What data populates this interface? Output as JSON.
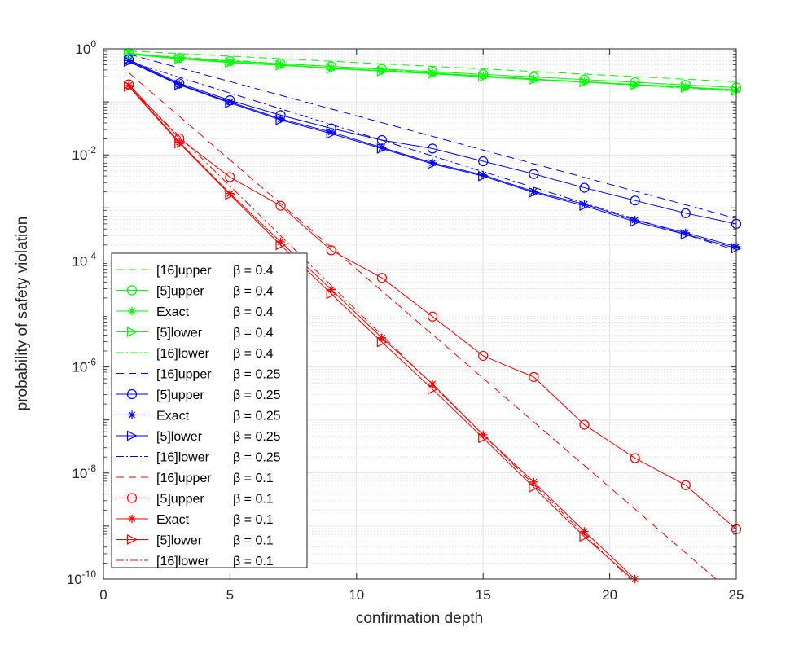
{
  "chart_data": {
    "type": "line",
    "title": "",
    "xlabel": "confirmation depth",
    "ylabel": "probability of safety violation",
    "xlim": [
      0,
      25
    ],
    "ylim_log10": [
      -10,
      0
    ],
    "yscale": "log",
    "x_ticks": [
      0,
      5,
      10,
      15,
      20,
      25
    ],
    "y_ticks": [
      {
        "base": "10",
        "exp": "0"
      },
      {
        "base": "10",
        "exp": "-2"
      },
      {
        "base": "10",
        "exp": "-4"
      },
      {
        "base": "10",
        "exp": "-6"
      },
      {
        "base": "10",
        "exp": "-8"
      },
      {
        "base": "10",
        "exp": "-10"
      }
    ],
    "grid": true,
    "legend_position": "bottom-left",
    "series": [
      {
        "name": "[16]upper",
        "beta": "β = 0.4",
        "color": "#00ff00",
        "style": "dashed",
        "marker": "none",
        "x": [
          1,
          25
        ],
        "log10_y": [
          -0.04,
          -0.62
        ]
      },
      {
        "name": "[5]upper",
        "beta": "β = 0.4",
        "color": "#00ff00",
        "style": "solid",
        "marker": "circle",
        "x": [
          1,
          3,
          5,
          7,
          9,
          11,
          13,
          15,
          17,
          19,
          21,
          23,
          25
        ],
        "log10_y": [
          -0.08,
          -0.17,
          -0.23,
          -0.28,
          -0.33,
          -0.38,
          -0.43,
          -0.48,
          -0.53,
          -0.58,
          -0.63,
          -0.68,
          -0.73
        ]
      },
      {
        "name": "Exact",
        "beta": "β = 0.4",
        "color": "#00ff00",
        "style": "solid",
        "marker": "star",
        "x": [
          1,
          3,
          5,
          7,
          9,
          11,
          13,
          15,
          17,
          19,
          21,
          23,
          25
        ],
        "log10_y": [
          -0.09,
          -0.18,
          -0.25,
          -0.3,
          -0.36,
          -0.41,
          -0.46,
          -0.51,
          -0.57,
          -0.62,
          -0.67,
          -0.72,
          -0.77
        ]
      },
      {
        "name": "[5]lower",
        "beta": "β = 0.4",
        "color": "#00ff00",
        "style": "solid",
        "marker": "triangle-right",
        "x": [
          1,
          3,
          5,
          7,
          9,
          11,
          13,
          15,
          17,
          19,
          21,
          23,
          25
        ],
        "log10_y": [
          -0.1,
          -0.19,
          -0.26,
          -0.31,
          -0.37,
          -0.42,
          -0.47,
          -0.53,
          -0.58,
          -0.63,
          -0.68,
          -0.73,
          -0.79
        ]
      },
      {
        "name": "[16]lower",
        "beta": "β = 0.4",
        "color": "#00ff00",
        "style": "dashdot",
        "marker": "none",
        "x": [
          1,
          25
        ],
        "log10_y": [
          -0.1,
          -0.8
        ]
      },
      {
        "name": "[16]upper",
        "beta": "β = 0.25",
        "color": "#0000ff",
        "style": "dashed",
        "marker": "none",
        "x": [
          1,
          25
        ],
        "log10_y": [
          -0.1,
          -3.2
        ]
      },
      {
        "name": "[5]upper",
        "beta": "β = 0.25",
        "color": "#0000ff",
        "style": "solid",
        "marker": "circle",
        "x": [
          1,
          3,
          5,
          7,
          9,
          11,
          13,
          15,
          17,
          19,
          21,
          23,
          25
        ],
        "log10_y": [
          -0.2,
          -0.65,
          -0.97,
          -1.25,
          -1.5,
          -1.72,
          -1.88,
          -2.12,
          -2.36,
          -2.62,
          -2.86,
          -3.1,
          -3.3
        ]
      },
      {
        "name": "Exact",
        "beta": "β = 0.25",
        "color": "#0000ff",
        "style": "solid",
        "marker": "star",
        "x": [
          1,
          3,
          5,
          7,
          9,
          11,
          13,
          15,
          17,
          19,
          21,
          23,
          25
        ],
        "log10_y": [
          -0.22,
          -0.67,
          -1.0,
          -1.32,
          -1.57,
          -1.86,
          -2.15,
          -2.38,
          -2.69,
          -2.93,
          -3.23,
          -3.47,
          -3.73
        ]
      },
      {
        "name": "[5]lower",
        "beta": "β = 0.25",
        "color": "#0000ff",
        "style": "solid",
        "marker": "triangle-right",
        "x": [
          1,
          3,
          5,
          7,
          9,
          11,
          13,
          15,
          17,
          19,
          21,
          23,
          25
        ],
        "log10_y": [
          -0.24,
          -0.68,
          -1.02,
          -1.34,
          -1.6,
          -1.88,
          -2.17,
          -2.4,
          -2.71,
          -2.96,
          -3.26,
          -3.5,
          -3.76
        ]
      },
      {
        "name": "[16]lower",
        "beta": "β = 0.25",
        "color": "#0000ff",
        "style": "dashdot",
        "marker": "none",
        "x": [
          1,
          25
        ],
        "log10_y": [
          -0.24,
          -3.8
        ]
      },
      {
        "name": "[16]upper",
        "beta": "β = 0.1",
        "color": "#ff0000",
        "style": "dashed",
        "marker": "none",
        "x": [
          1,
          24.2
        ],
        "log10_y": [
          -0.45,
          -10.0
        ]
      },
      {
        "name": "[5]upper",
        "beta": "β = 0.1",
        "color": "#ff0000",
        "style": "solid",
        "marker": "circle",
        "x": [
          1,
          3,
          5,
          7,
          9,
          11,
          13,
          15,
          17,
          19,
          21,
          23,
          25
        ],
        "log10_y": [
          -0.67,
          -1.69,
          -2.42,
          -2.96,
          -3.8,
          -4.32,
          -5.05,
          -5.79,
          -6.19,
          -7.09,
          -7.72,
          -8.23,
          -9.06
        ]
      },
      {
        "name": "Exact",
        "beta": "β = 0.1",
        "color": "#ff0000",
        "style": "solid",
        "marker": "star",
        "x": [
          1,
          3,
          5,
          7,
          9,
          11,
          13,
          15,
          17,
          19,
          21
        ],
        "log10_y": [
          -0.69,
          -1.76,
          -2.73,
          -3.64,
          -4.54,
          -5.45,
          -6.32,
          -7.28,
          -8.17,
          -9.1,
          -10.0
        ]
      },
      {
        "name": "[5]lower",
        "beta": "β = 0.1",
        "color": "#ff0000",
        "style": "solid",
        "marker": "triangle-right",
        "x": [
          1,
          3,
          5,
          7,
          9,
          11,
          13,
          15,
          17,
          19,
          20.9
        ],
        "log10_y": [
          -0.71,
          -1.78,
          -2.75,
          -3.7,
          -4.62,
          -5.53,
          -6.42,
          -7.34,
          -8.27,
          -9.2,
          -10.0
        ]
      },
      {
        "name": "[16]lower",
        "beta": "β = 0.1",
        "color": "#ff0000",
        "style": "dashdot",
        "marker": "none",
        "x": [
          1,
          20.8
        ],
        "log10_y": [
          -0.71,
          -10.0
        ]
      }
    ]
  }
}
